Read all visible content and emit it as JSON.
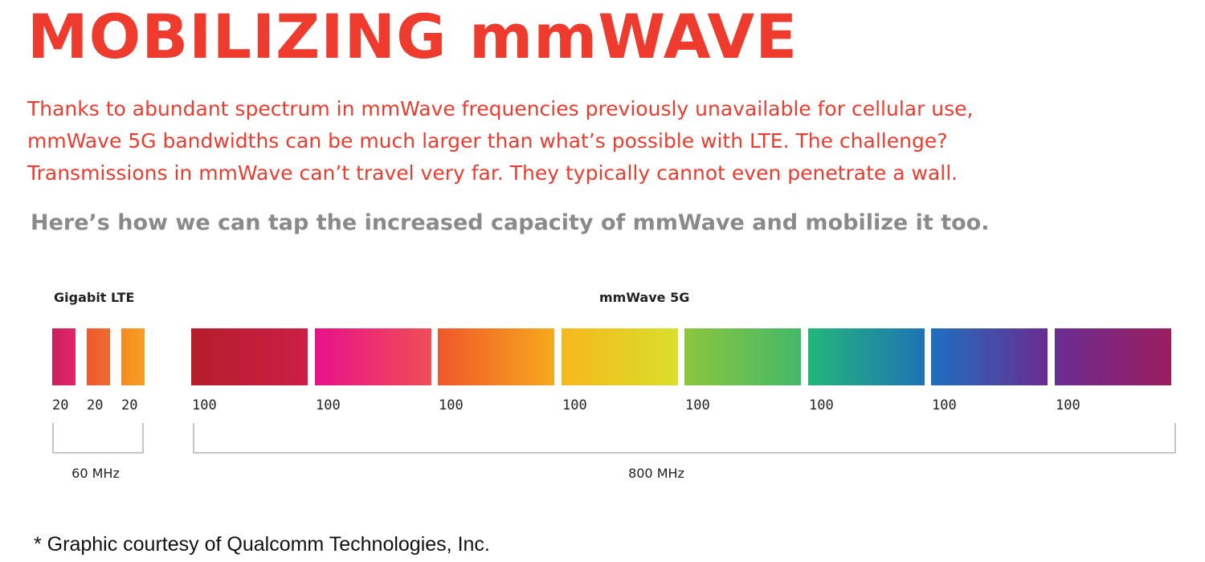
{
  "title": "MOBILIZING mmWAVE",
  "intro_lines": [
    "Thanks to abundant spectrum in mmWave frequencies previously unavailable for cellular use,",
    "mmWave 5G bandwidths can be much larger than what’s possible with LTE. The challenge?",
    "Transmissions in mmWave can’t travel very far. They typically cannot even penetrate a wall."
  ],
  "subhead": "Here’s how we can tap the increased capacity of mmWave and mobilize it too.",
  "diagram": {
    "lte": {
      "label": "Gigabit LTE",
      "carriers": [
        "20",
        "20",
        "20"
      ],
      "colors": [
        [
          "#cc1f5a",
          "#e2266d"
        ],
        [
          "#ee5a2c",
          "#f06a32"
        ],
        [
          "#f58a1f",
          "#f7a025"
        ]
      ],
      "total": "60 MHz"
    },
    "mmwave": {
      "label": "mmWave 5G",
      "carriers": [
        "100",
        "100",
        "100",
        "100",
        "100",
        "100",
        "100",
        "100"
      ],
      "colors": [
        [
          "#b51d2b",
          "#cc1f45"
        ],
        [
          "#e8118a",
          "#f04e57"
        ],
        [
          "#f0572a",
          "#f7a91e"
        ],
        [
          "#f7b81d",
          "#d9df2a"
        ],
        [
          "#8cc63f",
          "#43b868"
        ],
        [
          "#22b77a",
          "#1f73b5"
        ],
        [
          "#1e6fbf",
          "#6a2c91"
        ],
        [
          "#6b2c91",
          "#9b1d5f"
        ]
      ],
      "total": "800 MHz"
    }
  },
  "credit": "* Graphic courtesy of Qualcomm Technologies, Inc."
}
